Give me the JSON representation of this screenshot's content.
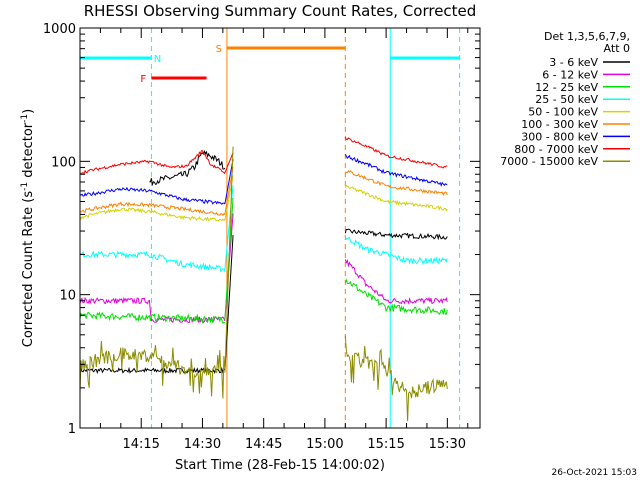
{
  "chart_data": {
    "type": "line",
    "title": "RHESSI Observing Summary Count Rates, Corrected",
    "xlabel": "Start Time (28-Feb-15 14:00:02)",
    "ylabel_main": "Corrected Count Rate (s",
    "ylabel_sup1": "-1",
    "ylabel_mid": " detector",
    "ylabel_sup2": "-1",
    "ylabel_end": ")",
    "x_ticks": [
      "14:15",
      "14:30",
      "14:45",
      "15:00",
      "15:15",
      "15:30"
    ],
    "x_tick_minutes": [
      15,
      30,
      45,
      60,
      75,
      90
    ],
    "x_range_minutes": [
      0,
      98
    ],
    "y_scale": "log",
    "y_range": [
      1,
      1000
    ],
    "y_ticks": [
      "1",
      "10",
      "100",
      "1000"
    ],
    "y_tick_values": [
      1,
      10,
      100,
      1000
    ],
    "legend_header": [
      "Det 1,3,5,6,7,9,",
      "Att 0"
    ],
    "timestamp": "26-Oct-2021 15:03",
    "legend_placement": "right",
    "series": [
      {
        "name": "3 - 6 keV",
        "color": "#000000",
        "noise": 0.04,
        "pre": [
          [
            0,
            2.7
          ],
          [
            30,
            2.7
          ],
          [
            35.5,
            2.7
          ]
        ],
        "post": [
          [
            65,
            30
          ],
          [
            75,
            28
          ],
          [
            90,
            27
          ]
        ],
        "extra": [
          [
            17,
            70
          ],
          [
            22,
            75
          ],
          [
            26,
            80
          ],
          [
            28,
            90
          ],
          [
            30,
            115
          ],
          [
            32,
            110
          ],
          [
            34,
            100
          ],
          [
            35.5,
            90
          ]
        ]
      },
      {
        "name": "6 - 12 keV",
        "color": "#e000e0",
        "noise": 0.05,
        "pre": [
          [
            0,
            9
          ],
          [
            17,
            9
          ],
          [
            17.5,
            6.5
          ],
          [
            35.5,
            6.5
          ]
        ],
        "post": [
          [
            65,
            18
          ],
          [
            70,
            12
          ],
          [
            75,
            9
          ],
          [
            90,
            9
          ]
        ]
      },
      {
        "name": "12 - 25 keV",
        "color": "#00e000",
        "noise": 0.06,
        "pre": [
          [
            0,
            7
          ],
          [
            35.5,
            6.5
          ]
        ],
        "post": [
          [
            65,
            13
          ],
          [
            70,
            10
          ],
          [
            75,
            8
          ],
          [
            90,
            7.5
          ]
        ]
      },
      {
        "name": "25 - 50 keV",
        "color": "#00ffff",
        "noise": 0.05,
        "pre": [
          [
            0,
            20
          ],
          [
            17,
            20
          ],
          [
            25,
            17
          ],
          [
            35.5,
            15.5
          ]
        ],
        "post": [
          [
            65,
            27
          ],
          [
            70,
            22
          ],
          [
            80,
            18
          ],
          [
            90,
            18
          ]
        ]
      },
      {
        "name": "50 - 100 keV",
        "color": "#d4d400",
        "noise": 0.03,
        "pre": [
          [
            0,
            38
          ],
          [
            10,
            44
          ],
          [
            17,
            42
          ],
          [
            25,
            38
          ],
          [
            35.5,
            36
          ]
        ],
        "post": [
          [
            65,
            65
          ],
          [
            75,
            50
          ],
          [
            90,
            44
          ]
        ]
      },
      {
        "name": "100 - 300 keV",
        "color": "#ff8000",
        "noise": 0.03,
        "pre": [
          [
            0,
            42
          ],
          [
            10,
            48
          ],
          [
            17,
            47
          ],
          [
            25,
            44
          ],
          [
            35.5,
            40
          ]
        ],
        "post": [
          [
            65,
            85
          ],
          [
            75,
            65
          ],
          [
            90,
            57
          ]
        ]
      },
      {
        "name": "300 - 800 keV",
        "color": "#0000ff",
        "noise": 0.03,
        "pre": [
          [
            0,
            55
          ],
          [
            10,
            62
          ],
          [
            17,
            60
          ],
          [
            25,
            52
          ],
          [
            35.5,
            48
          ]
        ],
        "post": [
          [
            65,
            110
          ],
          [
            75,
            82
          ],
          [
            90,
            66
          ]
        ]
      },
      {
        "name": "800 - 7000 keV",
        "color": "#ff0000",
        "noise": 0.025,
        "pre": [
          [
            0,
            82
          ],
          [
            10,
            95
          ],
          [
            17,
            100
          ],
          [
            22,
            90
          ],
          [
            26,
            92
          ],
          [
            28,
            105
          ],
          [
            30,
            120
          ],
          [
            32,
            95
          ],
          [
            35.5,
            82
          ]
        ],
        "post": [
          [
            65,
            150
          ],
          [
            75,
            110
          ],
          [
            90,
            90
          ]
        ]
      },
      {
        "name": "7000 - 15000 keV",
        "color": "#8c8c00",
        "noise": 0.12,
        "pre": [
          [
            0,
            3.0
          ],
          [
            10,
            3.6
          ],
          [
            17,
            3.5
          ],
          [
            25,
            2.8
          ],
          [
            35.5,
            2.6
          ]
        ],
        "post": [
          [
            65,
            3.5
          ],
          [
            75,
            2.7
          ],
          [
            80,
            1.8
          ],
          [
            90,
            2.2
          ]
        ]
      }
    ],
    "rise_segment": {
      "x": [
        35.5,
        37.5
      ],
      "y_from": [
        2.6,
        140
      ]
    },
    "flag_bars": [
      {
        "label": "N",
        "color": "#00ffff",
        "start": 0,
        "end": 17.5,
        "y_row": 1,
        "label_at": 19
      },
      {
        "label": "F",
        "color": "#ff0000",
        "start": 17.5,
        "end": 31,
        "y_row": 3,
        "label_at": 15.5
      },
      {
        "label": "S",
        "color": "#ff8000",
        "start": 36,
        "end": 65,
        "y_row": 0,
        "label_at": 34
      },
      {
        "label": "",
        "color": "#00ffff",
        "start": 76,
        "end": 93,
        "y_row": 1,
        "label_at": 0
      }
    ],
    "markers": [
      {
        "x": 0,
        "color": "#00ffff",
        "style": "solid"
      },
      {
        "x": 17.5,
        "color": "#00ffff",
        "style": "dashed"
      },
      {
        "x": 36,
        "color": "#ff8000",
        "style": "solid"
      },
      {
        "x": 65,
        "color": "#ff8000",
        "style": "dashed"
      },
      {
        "x": 76,
        "color": "#00ffff",
        "style": "solid"
      },
      {
        "x": 93,
        "color": "#00ffff",
        "style": "dashed"
      }
    ]
  }
}
